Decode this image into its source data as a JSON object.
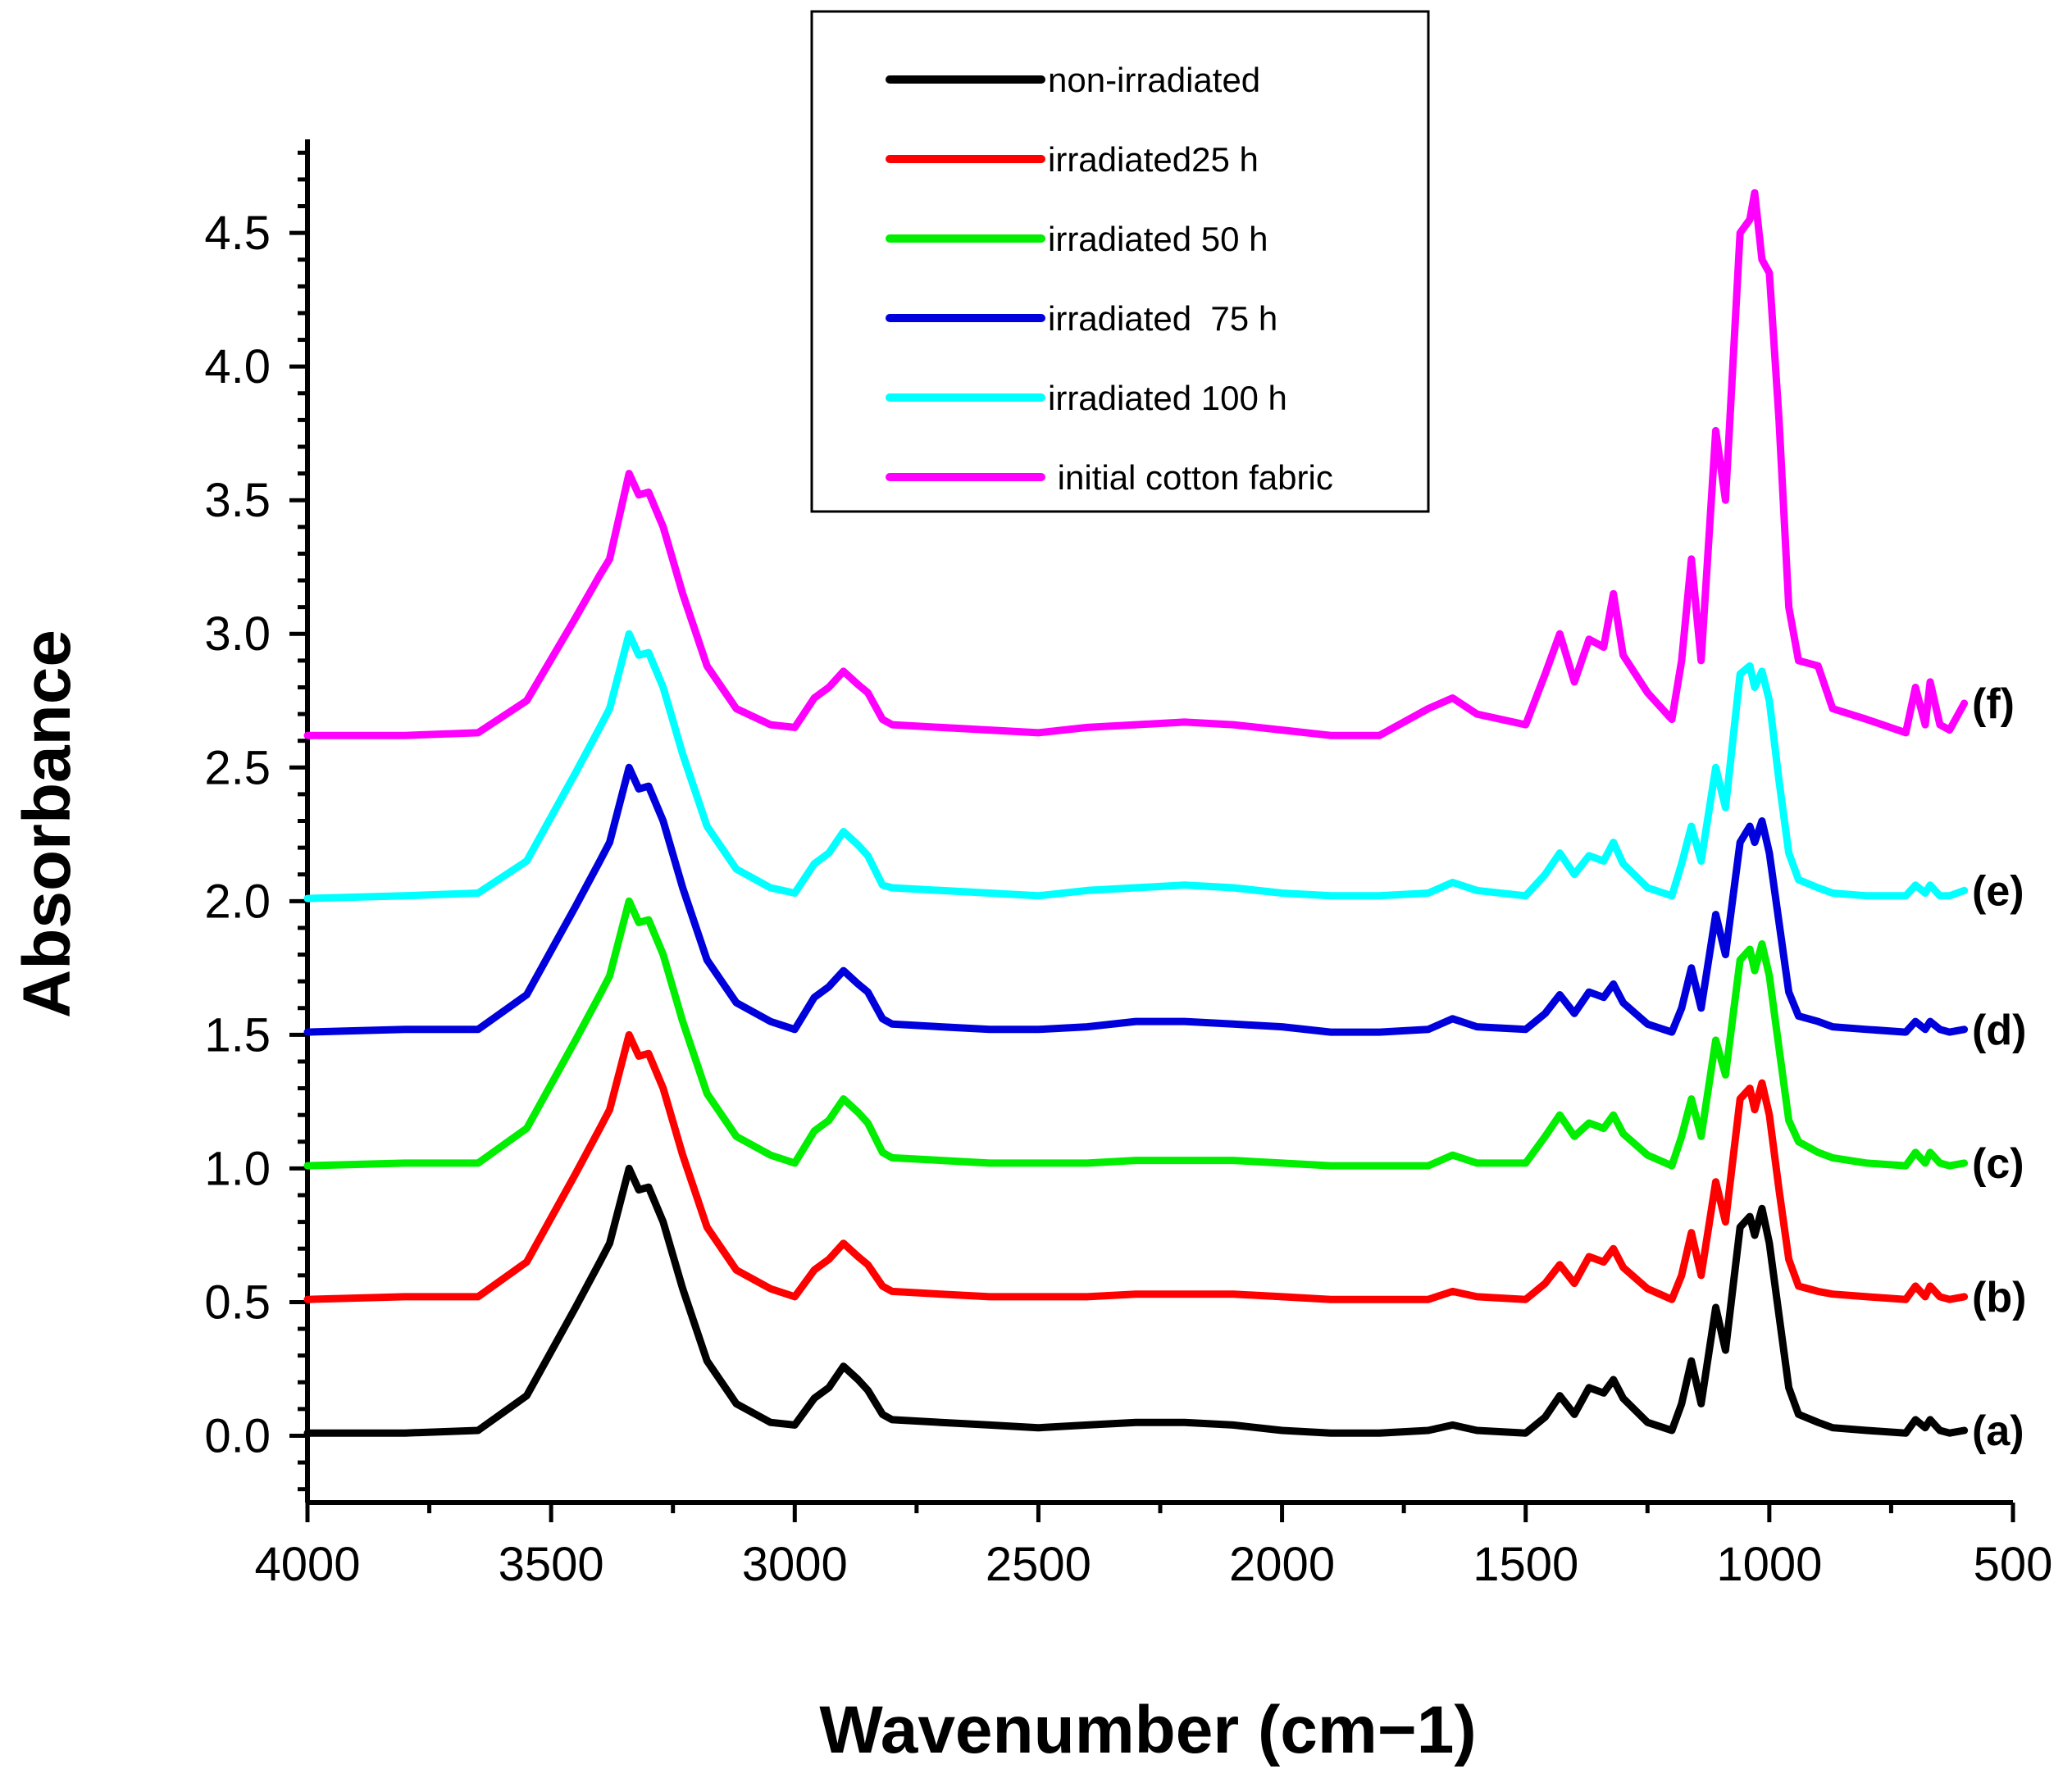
{
  "chart_data": {
    "type": "line",
    "title": "",
    "xlabel": "Wavenumber (cm−1)",
    "ylabel": "Absorbance",
    "xlim": [
      4000,
      500
    ],
    "ylim": [
      -0.25,
      4.85
    ],
    "x_ticks": [
      "4000",
      "3500",
      "3000",
      "2500",
      "2000",
      "1500",
      "1000",
      "500"
    ],
    "y_ticks": [
      "0.0",
      "0.5",
      "1.0",
      "1.5",
      "2.0",
      "2.5",
      "3.0",
      "3.5",
      "4.0",
      "4.5"
    ],
    "x_tick_values": [
      4000,
      3500,
      3000,
      2500,
      2000,
      1500,
      1000,
      500
    ],
    "y_tick_values": [
      0,
      0.5,
      1.0,
      1.5,
      2.0,
      2.5,
      3.0,
      3.5,
      4.0,
      4.5
    ],
    "legend_position": "top-center",
    "x": [
      4000,
      3800,
      3650,
      3550,
      3450,
      3400,
      3380,
      3340,
      3320,
      3300,
      3270,
      3230,
      3180,
      3120,
      3050,
      3000,
      2960,
      2930,
      2900,
      2870,
      2850,
      2820,
      2800,
      2700,
      2600,
      2500,
      2400,
      2300,
      2200,
      2100,
      2000,
      1900,
      1800,
      1700,
      1650,
      1600,
      1500,
      1460,
      1430,
      1400,
      1370,
      1340,
      1320,
      1300,
      1250,
      1200,
      1180,
      1160,
      1140,
      1110,
      1090,
      1060,
      1040,
      1030,
      1015,
      1000,
      980,
      960,
      940,
      900,
      870,
      800,
      720,
      700,
      680,
      670,
      650,
      630,
      600
    ],
    "series": [
      {
        "name": "non-irradiated",
        "label": "(a)",
        "color": "#000000",
        "offset": 0.0,
        "values": [
          0.01,
          0.01,
          0.02,
          0.15,
          0.48,
          0.65,
          0.72,
          1.0,
          0.92,
          0.93,
          0.8,
          0.55,
          0.28,
          0.12,
          0.05,
          0.04,
          0.14,
          0.18,
          0.26,
          0.21,
          0.17,
          0.08,
          0.06,
          0.05,
          0.04,
          0.03,
          0.04,
          0.05,
          0.05,
          0.04,
          0.02,
          0.01,
          0.01,
          0.02,
          0.04,
          0.02,
          0.01,
          0.07,
          0.15,
          0.08,
          0.18,
          0.16,
          0.21,
          0.14,
          0.05,
          0.02,
          0.12,
          0.28,
          0.12,
          0.48,
          0.32,
          0.78,
          0.82,
          0.75,
          0.85,
          0.72,
          0.45,
          0.18,
          0.08,
          0.05,
          0.03,
          0.02,
          0.01,
          0.06,
          0.03,
          0.06,
          0.02,
          0.01,
          0.02
        ]
      },
      {
        "name": "irradiated25 h",
        "label": "(b)",
        "color": "#ff0000",
        "offset": 0.5,
        "values": [
          0.01,
          0.02,
          0.02,
          0.15,
          0.48,
          0.65,
          0.72,
          1.0,
          0.92,
          0.93,
          0.8,
          0.55,
          0.28,
          0.12,
          0.05,
          0.02,
          0.12,
          0.16,
          0.22,
          0.17,
          0.14,
          0.06,
          0.04,
          0.03,
          0.02,
          0.02,
          0.02,
          0.03,
          0.03,
          0.03,
          0.02,
          0.01,
          0.01,
          0.01,
          0.04,
          0.02,
          0.01,
          0.07,
          0.14,
          0.07,
          0.17,
          0.15,
          0.2,
          0.13,
          0.05,
          0.01,
          0.1,
          0.26,
          0.1,
          0.45,
          0.3,
          0.76,
          0.8,
          0.72,
          0.82,
          0.7,
          0.42,
          0.16,
          0.06,
          0.04,
          0.03,
          0.02,
          0.01,
          0.06,
          0.02,
          0.06,
          0.02,
          0.01,
          0.02
        ]
      },
      {
        "name": "irradiated 50 h",
        "label": "(c)",
        "color": "#00ee00",
        "offset": 1.0,
        "values": [
          0.01,
          0.02,
          0.02,
          0.15,
          0.48,
          0.65,
          0.72,
          1.0,
          0.92,
          0.93,
          0.8,
          0.55,
          0.28,
          0.12,
          0.05,
          0.02,
          0.14,
          0.18,
          0.26,
          0.21,
          0.17,
          0.06,
          0.04,
          0.03,
          0.02,
          0.02,
          0.02,
          0.03,
          0.03,
          0.03,
          0.02,
          0.01,
          0.01,
          0.01,
          0.05,
          0.02,
          0.02,
          0.12,
          0.2,
          0.12,
          0.17,
          0.15,
          0.2,
          0.13,
          0.05,
          0.01,
          0.12,
          0.26,
          0.12,
          0.48,
          0.35,
          0.78,
          0.82,
          0.74,
          0.84,
          0.72,
          0.45,
          0.18,
          0.1,
          0.06,
          0.04,
          0.02,
          0.01,
          0.06,
          0.02,
          0.06,
          0.02,
          0.01,
          0.02
        ]
      },
      {
        "name": "irradiated  75 h",
        "label": "(d)",
        "color": "#0000dd",
        "offset": 1.5,
        "values": [
          0.01,
          0.02,
          0.02,
          0.15,
          0.48,
          0.65,
          0.72,
          1.0,
          0.92,
          0.93,
          0.8,
          0.55,
          0.28,
          0.12,
          0.05,
          0.02,
          0.14,
          0.18,
          0.24,
          0.19,
          0.16,
          0.06,
          0.04,
          0.03,
          0.02,
          0.02,
          0.03,
          0.05,
          0.05,
          0.04,
          0.03,
          0.01,
          0.01,
          0.02,
          0.06,
          0.03,
          0.02,
          0.08,
          0.15,
          0.08,
          0.16,
          0.14,
          0.19,
          0.12,
          0.04,
          0.01,
          0.1,
          0.25,
          0.1,
          0.45,
          0.3,
          0.72,
          0.78,
          0.72,
          0.8,
          0.68,
          0.42,
          0.16,
          0.07,
          0.05,
          0.03,
          0.02,
          0.01,
          0.05,
          0.02,
          0.05,
          0.02,
          0.01,
          0.02
        ]
      },
      {
        "name": "irradiated 100 h",
        "label": "(e)",
        "color": "#00ffff",
        "offset": 2.0,
        "values": [
          0.01,
          0.02,
          0.03,
          0.15,
          0.48,
          0.65,
          0.72,
          1.0,
          0.92,
          0.93,
          0.8,
          0.55,
          0.28,
          0.12,
          0.05,
          0.03,
          0.14,
          0.18,
          0.26,
          0.21,
          0.17,
          0.06,
          0.05,
          0.04,
          0.03,
          0.02,
          0.04,
          0.05,
          0.06,
          0.05,
          0.03,
          0.02,
          0.02,
          0.03,
          0.07,
          0.04,
          0.02,
          0.1,
          0.18,
          0.1,
          0.17,
          0.15,
          0.22,
          0.14,
          0.05,
          0.02,
          0.14,
          0.28,
          0.15,
          0.5,
          0.35,
          0.85,
          0.88,
          0.8,
          0.86,
          0.75,
          0.45,
          0.18,
          0.08,
          0.05,
          0.03,
          0.02,
          0.02,
          0.06,
          0.03,
          0.06,
          0.02,
          0.02,
          0.04
        ]
      },
      {
        "name": " initial cotton fabric",
        "label": "(f)",
        "color": "#ff00ff",
        "offset": 2.6,
        "values": [
          0.02,
          0.02,
          0.03,
          0.15,
          0.46,
          0.62,
          0.68,
          1.0,
          0.92,
          0.93,
          0.8,
          0.55,
          0.28,
          0.12,
          0.06,
          0.05,
          0.16,
          0.2,
          0.26,
          0.21,
          0.18,
          0.08,
          0.06,
          0.05,
          0.04,
          0.03,
          0.05,
          0.06,
          0.07,
          0.06,
          0.04,
          0.02,
          0.02,
          0.12,
          0.16,
          0.1,
          0.06,
          0.25,
          0.4,
          0.22,
          0.38,
          0.35,
          0.55,
          0.32,
          0.18,
          0.08,
          0.3,
          0.68,
          0.3,
          1.16,
          0.9,
          1.9,
          1.95,
          2.05,
          1.8,
          1.75,
          1.2,
          0.5,
          0.3,
          0.28,
          0.12,
          0.08,
          0.03,
          0.2,
          0.06,
          0.22,
          0.06,
          0.04,
          0.14
        ]
      }
    ]
  }
}
